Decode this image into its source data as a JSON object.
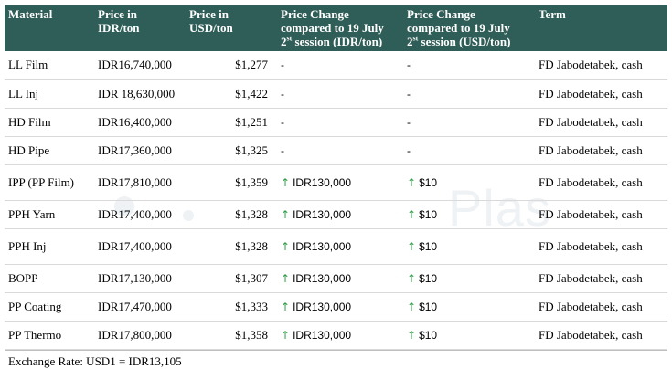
{
  "table": {
    "headers": {
      "material": "Material",
      "price_idr_l1": "Price in",
      "price_idr_l2": "IDR/ton",
      "price_usd_l1": "Price in",
      "price_usd_l2": "USD/ton",
      "chg_idr_l1": "Price Change",
      "chg_idr_l2": "compared to 19 July",
      "chg_idr_l3a": "2",
      "chg_idr_sup": "st",
      "chg_idr_l3b": " session (IDR/ton)",
      "chg_usd_l1": "Price Change",
      "chg_usd_l2": "compared to 19 July",
      "chg_usd_l3a": "2",
      "chg_usd_sup": "st",
      "chg_usd_l3b": " session (USD/ton)",
      "term": "Term"
    },
    "rows": [
      {
        "material": "LL Film",
        "price_idr": "IDR16,740,000",
        "price_usd": "$1,277",
        "chg_idr": "-",
        "chg_usd": "-",
        "up": false,
        "term": "FD Jabodetabek, cash"
      },
      {
        "material": "LL Inj",
        "price_idr": "IDR 18,630,000",
        "price_usd": "$1,422",
        "chg_idr": "-",
        "chg_usd": "-",
        "up": false,
        "term": "FD Jabodetabek, cash"
      },
      {
        "material": "HD Film",
        "price_idr": "IDR16,400,000",
        "price_usd": "$1,251",
        "chg_idr": "-",
        "chg_usd": "-",
        "up": false,
        "term": "FD Jabodetabek, cash"
      },
      {
        "material": "HD Pipe",
        "price_idr": "IDR17,360,000",
        "price_usd": "$1,325",
        "chg_idr": "-",
        "chg_usd": "-",
        "up": false,
        "term": "FD Jabodetabek, cash"
      },
      {
        "material": "IPP (PP Film)",
        "price_idr": "IDR17,810,000",
        "price_usd": "$1,359",
        "chg_idr": "IDR130,000",
        "chg_usd": "$10",
        "up": true,
        "term": "FD Jabodetabek, cash"
      },
      {
        "material": "PPH Yarn",
        "price_idr": "IDR17,400,000",
        "price_usd": "$1,328",
        "chg_idr": "IDR130,000",
        "chg_usd": "$10",
        "up": true,
        "term": "FD Jabodetabek, cash"
      },
      {
        "material": "PPH Inj",
        "price_idr": "IDR17,400,000",
        "price_usd": "$1,328",
        "chg_idr": "IDR130,000",
        "chg_usd": "$10",
        "up": true,
        "term": "FD Jabodetabek, cash"
      },
      {
        "material": "BOPP",
        "price_idr": "IDR17,130,000",
        "price_usd": "$1,307",
        "chg_idr": "IDR130,000",
        "chg_usd": "$10",
        "up": true,
        "term": "FD Jabodetabek, cash"
      },
      {
        "material": "PP Coating",
        "price_idr": "IDR17,470,000",
        "price_usd": "$1,333",
        "chg_idr": "IDR130,000",
        "chg_usd": "$10",
        "up": true,
        "term": "FD Jabodetabek, cash"
      },
      {
        "material": "PP Thermo",
        "price_idr": "IDR17,800,000",
        "price_usd": "$1,358",
        "chg_idr": "IDR130,000",
        "chg_usd": "$10",
        "up": true,
        "term": "FD Jabodetabek, cash"
      }
    ],
    "up_icon": "up-arrow-icon",
    "up_color": "#2e9e48",
    "header_color": "#2f5d57"
  },
  "footer": {
    "exchange_rate": "Exchange Rate: USD1 = IDR13,105"
  }
}
